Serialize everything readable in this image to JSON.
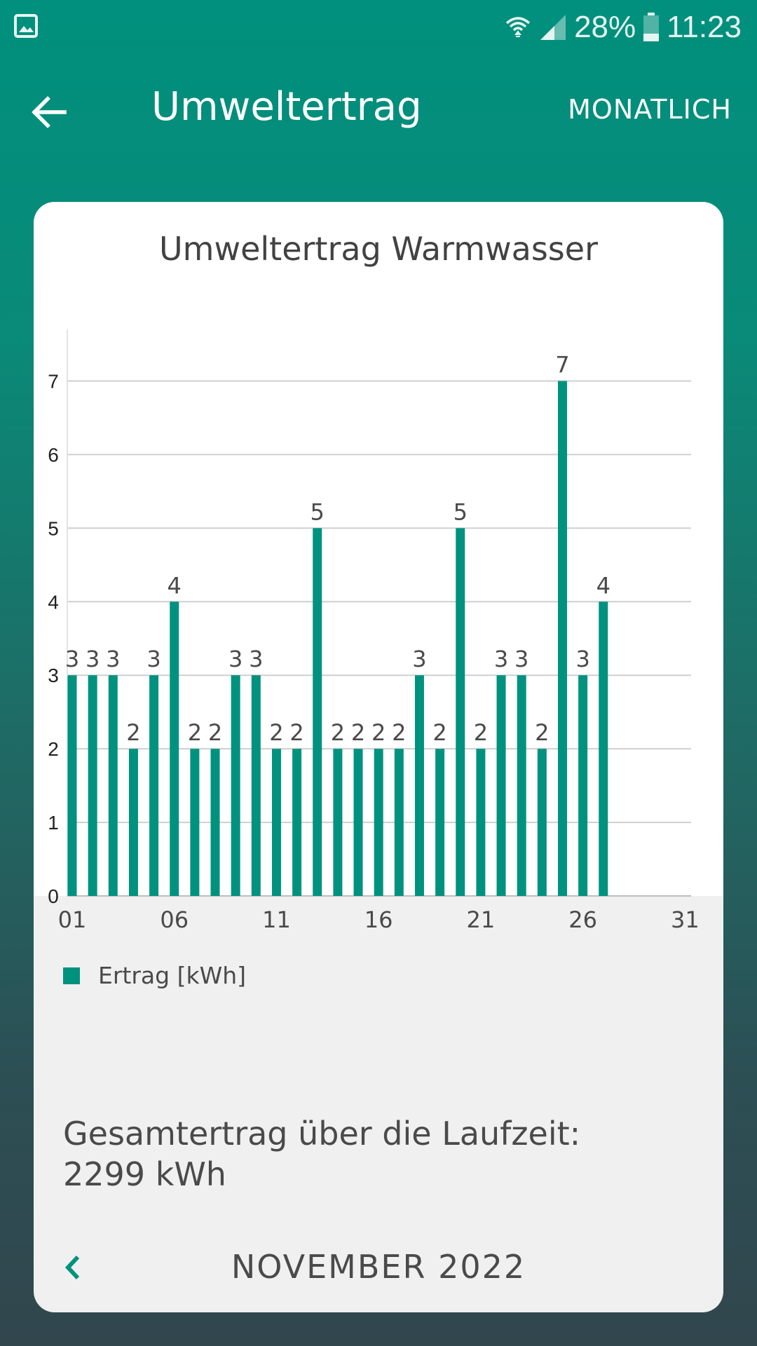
{
  "status_bar": {
    "battery": "28%",
    "time": "11:23",
    "icons": [
      "gallery-icon",
      "wifi-icon",
      "signal-icon",
      "battery-icon"
    ]
  },
  "app_bar": {
    "title": "Umweltertrag",
    "period": "MONATLICH",
    "back_icon": "arrow-left-icon"
  },
  "card": {
    "legend_label": "Ertrag [kWh]",
    "total_line1": "Gesamtertrag über die Laufzeit:",
    "total_line2": "2299 kWh",
    "month": "NOVEMBER 2022",
    "prev_icon": "chevron-left-icon"
  },
  "colors": {
    "accent": "#00927f",
    "header": "#00907d"
  },
  "chart_data": {
    "type": "bar",
    "title": "Umweltertrag Warmwasser",
    "xlabel": "",
    "ylabel": "",
    "x": [
      1,
      2,
      3,
      4,
      5,
      6,
      7,
      8,
      9,
      10,
      11,
      12,
      13,
      14,
      15,
      16,
      17,
      18,
      19,
      20,
      21,
      22,
      23,
      24,
      25,
      26,
      27
    ],
    "values": [
      3,
      3,
      3,
      2,
      3,
      4,
      2,
      2,
      3,
      3,
      2,
      2,
      5,
      2,
      2,
      2,
      2,
      3,
      2,
      5,
      2,
      3,
      3,
      2,
      7,
      3,
      4
    ],
    "x_ticks": [
      "01",
      "06",
      "11",
      "16",
      "21",
      "26",
      "31"
    ],
    "x_tick_values": [
      1,
      6,
      11,
      16,
      21,
      26,
      31
    ],
    "y_ticks": [
      0,
      1,
      2,
      3,
      4,
      5,
      6,
      7
    ],
    "xlim": [
      1,
      31
    ],
    "ylim": [
      0,
      7.7
    ],
    "grid": true,
    "series": [
      {
        "name": "Ertrag [kWh]",
        "color": "#00927f"
      }
    ],
    "legend": "bottom-left"
  }
}
